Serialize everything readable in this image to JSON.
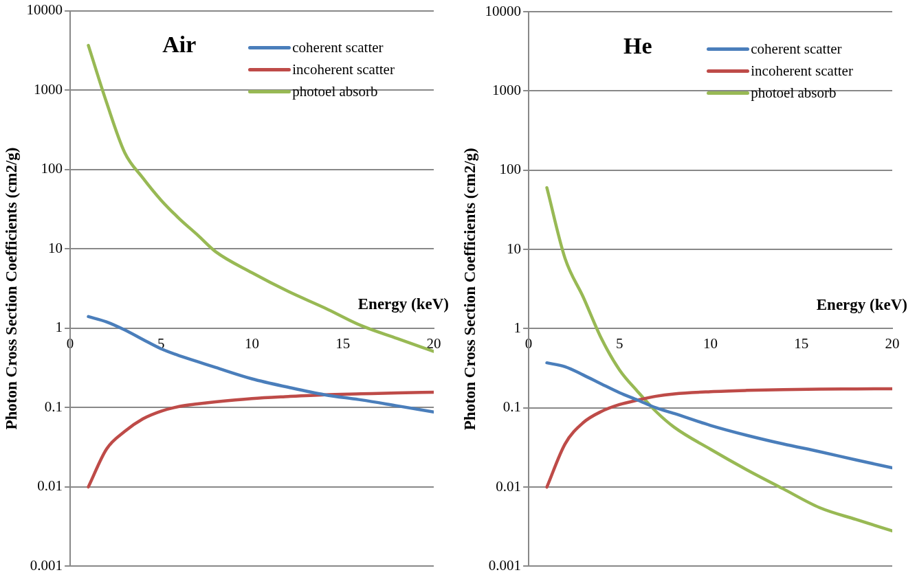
{
  "chart_data": [
    {
      "type": "line",
      "title": "Air",
      "xlabel": "Energy (keV)",
      "ylabel": "Photon Cross Section Coefficients (cm2/g)",
      "x": [
        1,
        2,
        3,
        4,
        5,
        6,
        7,
        8,
        10,
        12,
        14,
        16,
        18,
        20
      ],
      "xlim": [
        0,
        20
      ],
      "xticks": [
        0,
        5,
        10,
        15,
        20
      ],
      "ylim": [
        0.001,
        10000
      ],
      "yticks": [
        0.001,
        0.01,
        0.1,
        1,
        10,
        100,
        1000,
        10000
      ],
      "log": "y",
      "grid": "y",
      "legend": "top right",
      "marker": "none",
      "series": [
        {
          "name": "coherent scatter",
          "color": "#4a7ebb",
          "values": [
            1.4,
            1.2,
            0.95,
            0.72,
            0.55,
            0.45,
            0.38,
            0.32,
            0.23,
            0.18,
            0.145,
            0.125,
            0.105,
            0.088
          ]
        },
        {
          "name": "incoherent scatter",
          "color": "#be4b48",
          "values": [
            0.01,
            0.03,
            0.05,
            0.072,
            0.09,
            0.103,
            0.111,
            0.118,
            0.13,
            0.138,
            0.145,
            0.149,
            0.153,
            0.156
          ]
        },
        {
          "name": "photoel absorb",
          "color": "#98b954",
          "values": [
            3650,
            700,
            163,
            78,
            41,
            24,
            15,
            9.2,
            5,
            2.9,
            1.8,
            1.08,
            0.74,
            0.51
          ]
        }
      ]
    },
    {
      "type": "line",
      "title": "He",
      "xlabel": "Energy (keV)",
      "ylabel": "Photon Cross Section Coefficients (cm2/g)",
      "x": [
        1,
        2,
        3,
        4,
        5,
        6,
        7,
        8,
        10,
        12,
        14,
        16,
        18,
        20
      ],
      "xlim": [
        0,
        20
      ],
      "xticks": [
        0,
        5,
        10,
        15,
        20
      ],
      "ylim": [
        0.001,
        10000
      ],
      "yticks": [
        0.001,
        0.01,
        0.1,
        1,
        10,
        100,
        1000,
        10000
      ],
      "log": "y",
      "grid": "y",
      "legend": "top right",
      "marker": "none",
      "series": [
        {
          "name": "coherent scatter",
          "color": "#4a7ebb",
          "values": [
            0.37,
            0.33,
            0.26,
            0.2,
            0.155,
            0.125,
            0.1,
            0.085,
            0.06,
            0.045,
            0.035,
            0.028,
            0.022,
            0.0175
          ]
        },
        {
          "name": "incoherent scatter",
          "color": "#be4b48",
          "values": [
            0.01,
            0.035,
            0.065,
            0.09,
            0.11,
            0.125,
            0.14,
            0.15,
            0.16,
            0.166,
            0.17,
            0.172,
            0.173,
            0.174
          ]
        },
        {
          "name": "photoel absorb",
          "color": "#98b954",
          "values": [
            60,
            7.7,
            2.5,
            0.75,
            0.3,
            0.16,
            0.09,
            0.057,
            0.03,
            0.0165,
            0.0095,
            0.0055,
            0.0039,
            0.0028
          ]
        }
      ]
    }
  ]
}
